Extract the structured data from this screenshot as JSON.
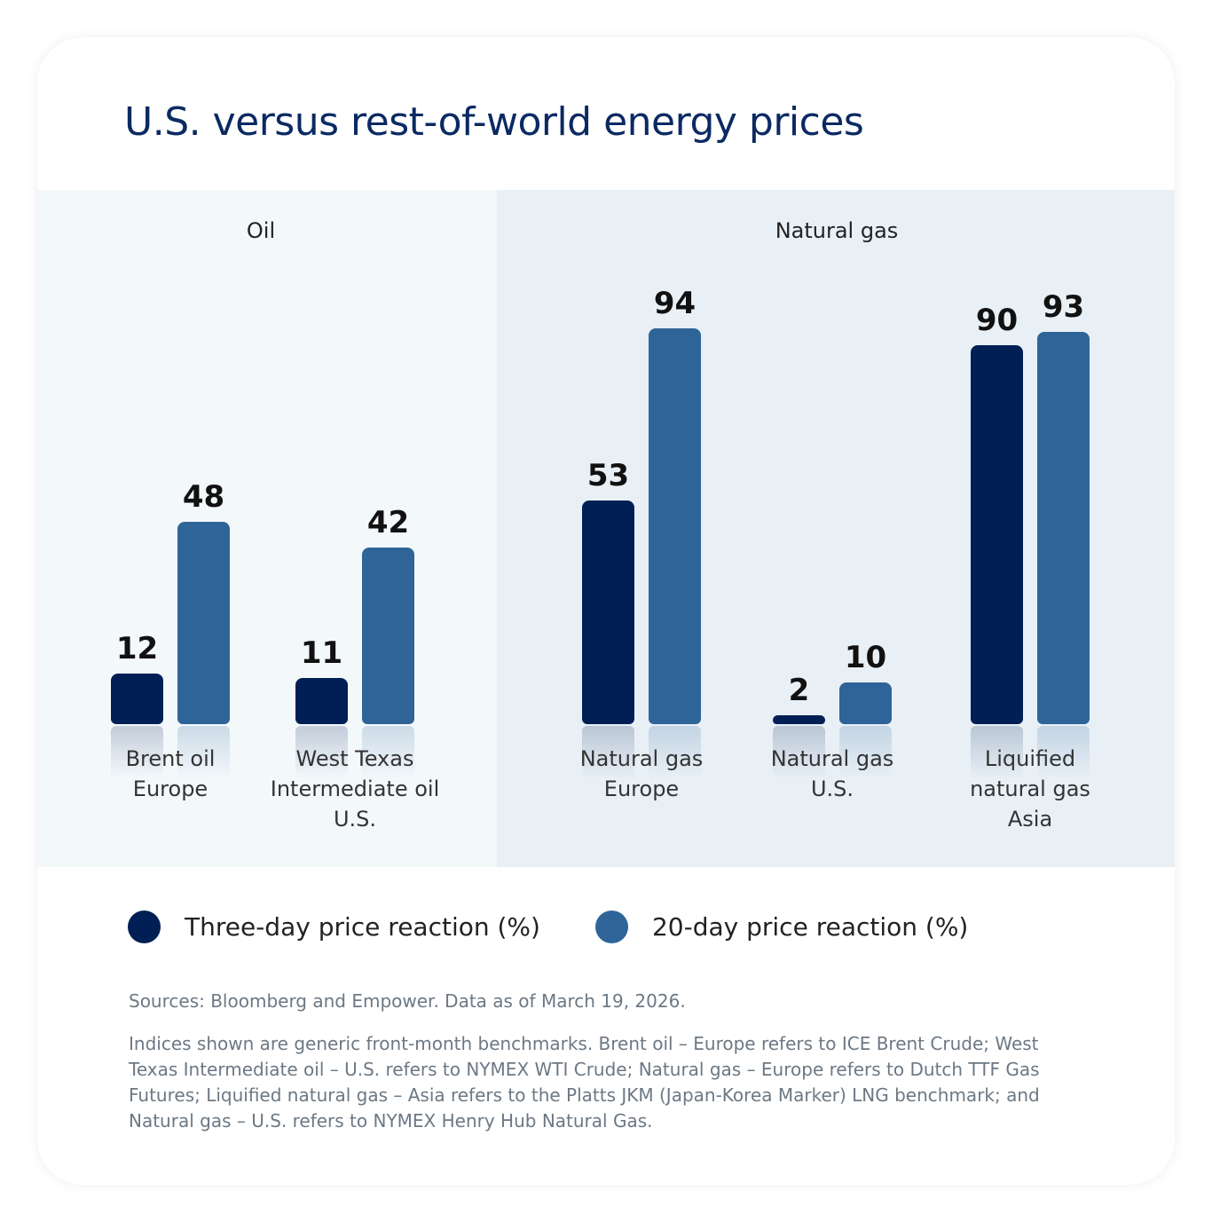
{
  "chart_data": {
    "type": "bar",
    "title": "U.S. versus rest-of-world energy prices",
    "groups": [
      {
        "label": "Oil",
        "categories": [
          [
            "Brent oil",
            "Europe"
          ],
          [
            "West Texas",
            "Intermediate oil",
            "U.S."
          ]
        ]
      },
      {
        "label": "Natural gas",
        "categories": [
          [
            "Natural gas",
            "Europe"
          ],
          [
            "Natural gas",
            "U.S."
          ],
          [
            "Liquified",
            "natural gas",
            "Asia"
          ]
        ]
      }
    ],
    "categories": [
      "Brent oil Europe",
      "West Texas Intermediate oil U.S.",
      "Natural gas Europe",
      "Natural gas U.S.",
      "Liquified natural gas Asia"
    ],
    "series": [
      {
        "name": "Three-day price reaction (%)",
        "color": "#001f54",
        "values": [
          12,
          11,
          53,
          2,
          90
        ]
      },
      {
        "name": "20-day price reaction (%)",
        "color": "#2f6499",
        "values": [
          48,
          42,
          94,
          10,
          93
        ]
      }
    ],
    "ylim": [
      0,
      100
    ],
    "grid": false,
    "legend": "bottom",
    "data_labels": true
  },
  "footer": {
    "sources": "Sources: Bloomberg and Empower. Data as of March 19, 2026.",
    "notes": "Indices shown are generic front-month benchmarks. Brent oil – Europe refers to ICE Brent Crude; West Texas Intermediate oil – U.S. refers to NYMEX WTI Crude; Natural gas – Europe refers to Dutch TTF Gas Futures; Liquified natural gas – Asia refers to the Platts JKM (Japan-Korea Marker) LNG benchmark; and Natural gas – U.S. refers to NYMEX Henry Hub Natural Gas."
  },
  "colors": {
    "title": "#0b2a63",
    "oil_panel": "#f3f8fb",
    "gas_panel": "#e8f0f6"
  }
}
